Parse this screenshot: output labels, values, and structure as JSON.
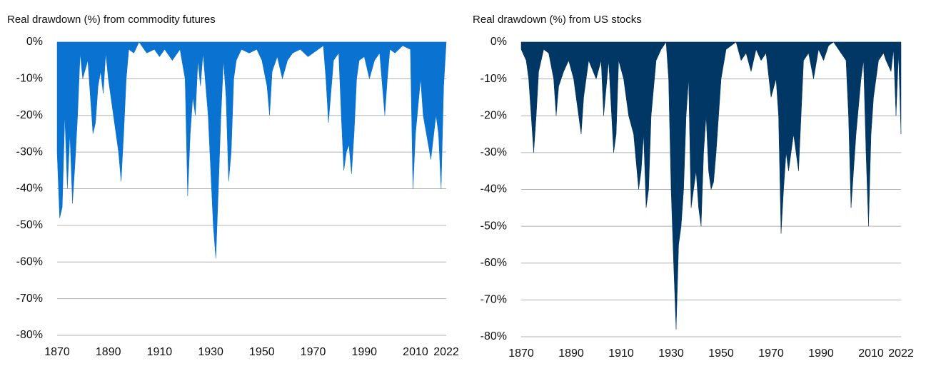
{
  "chart_data": [
    {
      "type": "area",
      "title": "Real drawdown (%) from commodity futures",
      "color": "#0a72d0",
      "x": [
        1870,
        1871,
        1872,
        1873,
        1874,
        1875,
        1876,
        1877,
        1878,
        1879,
        1880,
        1882,
        1883,
        1884,
        1885,
        1886,
        1887,
        1888,
        1889,
        1890,
        1892,
        1894,
        1895,
        1896,
        1897,
        1898,
        1900,
        1902,
        1905,
        1908,
        1910,
        1912,
        1915,
        1918,
        1920,
        1921,
        1922,
        1923,
        1924,
        1925,
        1926,
        1927,
        1929,
        1930,
        1931,
        1932,
        1933,
        1934,
        1935,
        1936,
        1937,
        1938,
        1939,
        1940,
        1942,
        1945,
        1948,
        1950,
        1952,
        1953,
        1954,
        1956,
        1958,
        1960,
        1962,
        1965,
        1968,
        1970,
        1972,
        1974,
        1975,
        1976,
        1978,
        1980,
        1981,
        1982,
        1983,
        1984,
        1985,
        1986,
        1987,
        1988,
        1990,
        1992,
        1994,
        1996,
        1998,
        1999,
        2000,
        2002,
        2005,
        2008,
        2009,
        2010,
        2012,
        2013,
        2015,
        2016,
        2018,
        2019,
        2020,
        2021,
        2022
      ],
      "values": [
        -30,
        -48,
        -45,
        -20,
        -40,
        -25,
        -44,
        -33,
        -20,
        -3,
        -10,
        -5,
        -15,
        -25,
        -22,
        -12,
        -8,
        -14,
        -3,
        -10,
        -20,
        -30,
        -38,
        -25,
        -10,
        -2,
        -3,
        0,
        -3,
        -2,
        -4,
        -2,
        -5,
        -2,
        -10,
        -42,
        -25,
        -15,
        -20,
        -5,
        -12,
        -3,
        -20,
        -35,
        -50,
        -59,
        -40,
        -20,
        -5,
        -15,
        -38,
        -30,
        -10,
        -5,
        -2,
        -3,
        -2,
        -5,
        -12,
        -20,
        -8,
        -4,
        -10,
        -5,
        -3,
        -2,
        -4,
        -3,
        -2,
        -1,
        -10,
        -22,
        -5,
        -3,
        -20,
        -35,
        -30,
        -28,
        -36,
        -25,
        -10,
        -5,
        -4,
        -10,
        -5,
        -3,
        -20,
        -10,
        -2,
        -3,
        -1,
        -2,
        -40,
        -25,
        -10,
        -20,
        -28,
        -32,
        -20,
        -25,
        -40,
        -12,
        0
      ],
      "xlim": [
        1870,
        2022
      ],
      "xticks": [
        1870,
        1890,
        1910,
        1930,
        1950,
        1970,
        1990,
        2010,
        2022
      ],
      "ylim": [
        -80,
        0
      ],
      "yticks": [
        {
          "value": 0,
          "label": "0%"
        },
        {
          "value": -10,
          "label": "-10%"
        },
        {
          "value": -20,
          "label": "-20%"
        },
        {
          "value": -30,
          "label": "-30%"
        },
        {
          "value": -40,
          "label": "-40%"
        },
        {
          "value": -50,
          "label": "-50%"
        },
        {
          "value": -60,
          "label": "-60%"
        },
        {
          "value": -70,
          "label": "-70%"
        },
        {
          "value": -80,
          "label": "-80%"
        }
      ],
      "grid": true
    },
    {
      "type": "area",
      "title": "Real drawdown (%) from US stocks",
      "color": "#003764",
      "x": [
        1870,
        1872,
        1873,
        1875,
        1876,
        1877,
        1879,
        1881,
        1883,
        1884,
        1885,
        1887,
        1889,
        1891,
        1893,
        1894,
        1895,
        1897,
        1900,
        1902,
        1903,
        1905,
        1907,
        1908,
        1909,
        1911,
        1913,
        1915,
        1917,
        1918,
        1919,
        1920,
        1921,
        1922,
        1924,
        1926,
        1928,
        1929,
        1930,
        1931,
        1932,
        1933,
        1934,
        1935,
        1936,
        1937,
        1938,
        1939,
        1940,
        1941,
        1942,
        1943,
        1944,
        1945,
        1946,
        1947,
        1948,
        1949,
        1950,
        1952,
        1954,
        1956,
        1958,
        1960,
        1962,
        1964,
        1966,
        1968,
        1970,
        1972,
        1973,
        1974,
        1975,
        1976,
        1977,
        1978,
        1979,
        1980,
        1981,
        1982,
        1983,
        1985,
        1987,
        1989,
        1991,
        1993,
        1995,
        1998,
        2000,
        2001,
        2002,
        2003,
        2004,
        2006,
        2007,
        2008,
        2009,
        2010,
        2011,
        2013,
        2015,
        2016,
        2018,
        2019,
        2020,
        2021,
        2022
      ],
      "values": [
        -2,
        -5,
        -10,
        -30,
        -20,
        -8,
        -2,
        -3,
        -10,
        -20,
        -12,
        -8,
        -5,
        -10,
        -20,
        -25,
        -15,
        -5,
        -10,
        -5,
        -20,
        -5,
        -30,
        -25,
        -5,
        -10,
        -20,
        -25,
        -40,
        -35,
        -25,
        -45,
        -40,
        -20,
        -5,
        -2,
        0,
        -10,
        -40,
        -60,
        -78,
        -55,
        -50,
        -40,
        -20,
        -10,
        -45,
        -40,
        -35,
        -45,
        -50,
        -30,
        -20,
        -35,
        -40,
        -38,
        -30,
        -20,
        -10,
        -2,
        -1,
        0,
        -5,
        -3,
        -8,
        -2,
        -5,
        -3,
        -15,
        -10,
        -20,
        -52,
        -40,
        -30,
        -35,
        -30,
        -25,
        -30,
        -35,
        -20,
        -5,
        -3,
        -10,
        -2,
        -5,
        -1,
        0,
        -3,
        -5,
        -20,
        -45,
        -35,
        -25,
        -10,
        -5,
        -30,
        -50,
        -25,
        -15,
        -5,
        -3,
        -5,
        -8,
        -2,
        -20,
        -3,
        -25
      ],
      "xlim": [
        1870,
        2022
      ],
      "xticks": [
        1870,
        1890,
        1910,
        1930,
        1950,
        1970,
        1990,
        2010,
        2022
      ],
      "ylim": [
        -80,
        0
      ],
      "yticks": [
        {
          "value": 0,
          "label": "0%"
        },
        {
          "value": -10,
          "label": "-10%"
        },
        {
          "value": -20,
          "label": "-20%"
        },
        {
          "value": -30,
          "label": "-30%"
        },
        {
          "value": -40,
          "label": "-40%"
        },
        {
          "value": -50,
          "label": "-50%"
        },
        {
          "value": -60,
          "label": "-60%"
        },
        {
          "value": -70,
          "label": "-70%"
        },
        {
          "value": -80,
          "label": "-80%"
        }
      ],
      "grid": true
    }
  ]
}
